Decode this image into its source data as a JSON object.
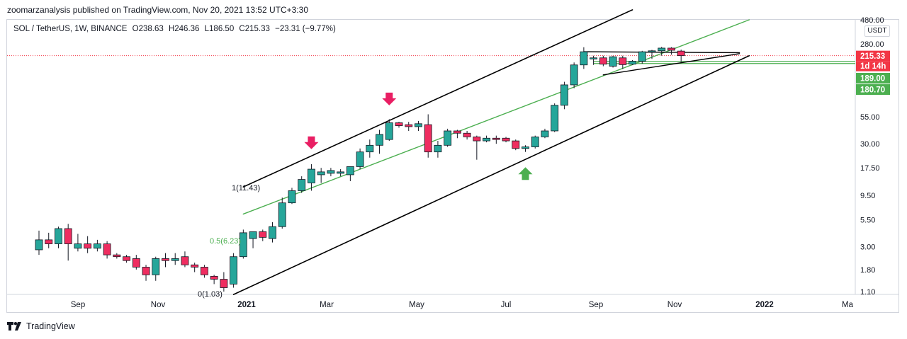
{
  "header": {
    "caption": "zoomarzanalysis published on TradingView.com, Nov 20, 2021 13:52 UTC+3:30"
  },
  "legend": {
    "symbol": "SOL / TetherUS, 1W, BINANCE",
    "open": "O238.63",
    "high": "H246.36",
    "low": "L186.50",
    "close": "C215.33",
    "change": "−23.31 (−9.77%)"
  },
  "axis": {
    "unit": "USDT",
    "price_labels": [
      "480.00",
      "280.00",
      "55.00",
      "30.00",
      "17.50",
      "9.50",
      "5.50",
      "3.00",
      "1.80",
      "1.10"
    ],
    "time_labels": [
      "Sep",
      "Nov",
      "2021",
      "Mar",
      "May",
      "Jul",
      "Sep",
      "Nov",
      "2022",
      "Ma"
    ]
  },
  "tags": {
    "last_price": "215.33",
    "countdown": "1d 14h",
    "level_upper": "189.00",
    "level_lower": "180.70"
  },
  "annotations": {
    "fib_1": "1(11.43)",
    "fib_05": "0.5(6.23)",
    "fib_0": "0(1.03)"
  },
  "brand": {
    "name": "TradingView"
  },
  "colors": {
    "bull": "#26a69a",
    "bear": "#ef2d60",
    "channel": "#000000",
    "midline": "#4caf50",
    "price_line": "#f23645",
    "level": "#4caf50"
  },
  "chart_data": {
    "type": "candlestick",
    "title": "SOL / TetherUS, 1W, BINANCE",
    "y_scale": "log",
    "ylim": [
      1.05,
      480
    ],
    "x_ticks": [
      "Sep",
      "Nov",
      "2021",
      "Mar",
      "May",
      "Jul",
      "Sep",
      "Nov",
      "2022",
      "Ma"
    ],
    "y_ticks": [
      480,
      280,
      55,
      30,
      17.5,
      9.5,
      5.5,
      3,
      1.8,
      1.1
    ],
    "candles": [
      {
        "o": 2.8,
        "h": 4.3,
        "l": 2.5,
        "c": 3.5
      },
      {
        "o": 3.5,
        "h": 4.1,
        "l": 2.9,
        "c": 3.2
      },
      {
        "o": 3.2,
        "h": 4.7,
        "l": 2.9,
        "c": 4.5
      },
      {
        "o": 4.5,
        "h": 5.0,
        "l": 2.2,
        "c": 3.2
      },
      {
        "o": 2.9,
        "h": 4.0,
        "l": 2.7,
        "c": 3.2
      },
      {
        "o": 3.2,
        "h": 3.8,
        "l": 2.6,
        "c": 2.9
      },
      {
        "o": 2.9,
        "h": 3.5,
        "l": 2.7,
        "c": 3.2
      },
      {
        "o": 3.2,
        "h": 3.4,
        "l": 2.3,
        "c": 2.5
      },
      {
        "o": 2.5,
        "h": 2.6,
        "l": 2.3,
        "c": 2.4
      },
      {
        "o": 2.4,
        "h": 2.5,
        "l": 2.1,
        "c": 2.2
      },
      {
        "o": 2.3,
        "h": 2.5,
        "l": 1.8,
        "c": 1.9
      },
      {
        "o": 1.9,
        "h": 2.0,
        "l": 1.4,
        "c": 1.6
      },
      {
        "o": 1.6,
        "h": 2.4,
        "l": 1.4,
        "c": 2.3
      },
      {
        "o": 2.3,
        "h": 2.6,
        "l": 1.9,
        "c": 2.2
      },
      {
        "o": 2.2,
        "h": 2.6,
        "l": 2.0,
        "c": 2.3
      },
      {
        "o": 2.4,
        "h": 2.7,
        "l": 1.9,
        "c": 2.0
      },
      {
        "o": 2.0,
        "h": 2.1,
        "l": 1.7,
        "c": 1.9
      },
      {
        "o": 1.9,
        "h": 2.0,
        "l": 1.5,
        "c": 1.6
      },
      {
        "o": 1.55,
        "h": 1.6,
        "l": 1.3,
        "c": 1.45
      },
      {
        "o": 1.45,
        "h": 1.7,
        "l": 1.1,
        "c": 1.2
      },
      {
        "o": 1.3,
        "h": 2.6,
        "l": 1.2,
        "c": 2.4
      },
      {
        "o": 2.4,
        "h": 4.4,
        "l": 2.3,
        "c": 4.1
      },
      {
        "o": 3.6,
        "h": 4.0,
        "l": 2.9,
        "c": 4.2
      },
      {
        "o": 4.2,
        "h": 4.4,
        "l": 3.4,
        "c": 3.7
      },
      {
        "o": 3.6,
        "h": 5.2,
        "l": 3.3,
        "c": 4.7
      },
      {
        "o": 4.7,
        "h": 9.0,
        "l": 4.5,
        "c": 8.0
      },
      {
        "o": 8.0,
        "h": 11.2,
        "l": 7.8,
        "c": 10.5
      },
      {
        "o": 10.5,
        "h": 14.5,
        "l": 10.0,
        "c": 13.5
      },
      {
        "o": 12.5,
        "h": 19.0,
        "l": 10.5,
        "c": 17.0
      },
      {
        "o": 15.0,
        "h": 17.5,
        "l": 12.5,
        "c": 16.0
      },
      {
        "o": 15.5,
        "h": 17.5,
        "l": 14.5,
        "c": 16.5
      },
      {
        "o": 15.5,
        "h": 17.0,
        "l": 14.5,
        "c": 16.0
      },
      {
        "o": 15.0,
        "h": 17.5,
        "l": 13.0,
        "c": 18.0
      },
      {
        "o": 18.0,
        "h": 27.0,
        "l": 17.0,
        "c": 25.0
      },
      {
        "o": 25.0,
        "h": 33.0,
        "l": 22.0,
        "c": 29.0
      },
      {
        "o": 29.0,
        "h": 41.0,
        "l": 24.0,
        "c": 37.0
      },
      {
        "o": 33.0,
        "h": 52.0,
        "l": 32.0,
        "c": 48.0
      },
      {
        "o": 48.0,
        "h": 49.0,
        "l": 43.0,
        "c": 45.0
      },
      {
        "o": 46.0,
        "h": 49.0,
        "l": 40.0,
        "c": 44.0
      },
      {
        "o": 44.0,
        "h": 50.0,
        "l": 40.0,
        "c": 47.0
      },
      {
        "o": 46.0,
        "h": 58.0,
        "l": 22.0,
        "c": 25.0
      },
      {
        "o": 25.0,
        "h": 32.0,
        "l": 22.0,
        "c": 29.0
      },
      {
        "o": 29.0,
        "h": 42.0,
        "l": 28.0,
        "c": 40.0
      },
      {
        "o": 40.0,
        "h": 41.0,
        "l": 34.0,
        "c": 38.0
      },
      {
        "o": 38.0,
        "h": 40.0,
        "l": 33.0,
        "c": 35.0
      },
      {
        "o": 35.0,
        "h": 36.0,
        "l": 21.0,
        "c": 32.0
      },
      {
        "o": 32.0,
        "h": 36.0,
        "l": 31.0,
        "c": 34.0
      },
      {
        "o": 34.0,
        "h": 36.0,
        "l": 30.0,
        "c": 33.0
      },
      {
        "o": 34.0,
        "h": 35.0,
        "l": 31.0,
        "c": 32.0
      },
      {
        "o": 32.0,
        "h": 33.0,
        "l": 26.0,
        "c": 27.0
      },
      {
        "o": 27.0,
        "h": 29.0,
        "l": 25.0,
        "c": 28.0
      },
      {
        "o": 28.0,
        "h": 36.0,
        "l": 27.0,
        "c": 35.0
      },
      {
        "o": 35.0,
        "h": 42.0,
        "l": 34.0,
        "c": 40.0
      },
      {
        "o": 40.0,
        "h": 74.0,
        "l": 39.0,
        "c": 71.0
      },
      {
        "o": 71.0,
        "h": 120.0,
        "l": 65.0,
        "c": 112.0
      },
      {
        "o": 112.0,
        "h": 185.0,
        "l": 104.0,
        "c": 175.0
      },
      {
        "o": 175.0,
        "h": 260.0,
        "l": 160.0,
        "c": 235.0
      },
      {
        "o": 200.0,
        "h": 215.0,
        "l": 175.0,
        "c": 205.0
      },
      {
        "o": 205.0,
        "h": 215.0,
        "l": 170.0,
        "c": 178.0
      },
      {
        "o": 170.0,
        "h": 215.0,
        "l": 165.0,
        "c": 210.0
      },
      {
        "o": 205.0,
        "h": 215.0,
        "l": 160.0,
        "c": 176.0
      },
      {
        "o": 178.0,
        "h": 195.0,
        "l": 175.0,
        "c": 190.0
      },
      {
        "o": 190.0,
        "h": 240.0,
        "l": 180.0,
        "c": 235.0
      },
      {
        "o": 235.0,
        "h": 245.0,
        "l": 200.0,
        "c": 240.0
      },
      {
        "o": 240.0,
        "h": 262.0,
        "l": 215.0,
        "c": 255.0
      },
      {
        "o": 255.0,
        "h": 260.0,
        "l": 220.0,
        "c": 243.0
      },
      {
        "o": 238.63,
        "h": 246.36,
        "l": 186.5,
        "c": 215.33
      }
    ],
    "last_price": 215.33,
    "levels": [
      189.0,
      180.7
    ],
    "channel": {
      "upper": {
        "from": {
          "i": 21,
          "p": 11.43
        },
        "to": {
          "i": 61,
          "p": 600
        }
      },
      "lower": {
        "from": {
          "i": 20,
          "p": 1.03
        },
        "to": {
          "i": 73,
          "p": 215
        }
      },
      "mid": {
        "from": {
          "i": 21,
          "p": 6.23
        },
        "to": {
          "i": 73,
          "p": 480
        }
      }
    },
    "triangle": {
      "upper": {
        "from": {
          "i": 56,
          "p": 235
        },
        "to": {
          "i": 72,
          "p": 230
        }
      },
      "lower": {
        "from": {
          "i": 58,
          "p": 140
        },
        "to": {
          "i": 72,
          "p": 225
        }
      }
    },
    "markers": [
      {
        "type": "arrow-down",
        "i": 28,
        "p": 27,
        "color": "#e91e63"
      },
      {
        "type": "arrow-down",
        "i": 36,
        "p": 72,
        "color": "#e91e63"
      },
      {
        "type": "arrow-up",
        "i": 50,
        "p": 17.5,
        "color": "#4caf50"
      }
    ]
  }
}
